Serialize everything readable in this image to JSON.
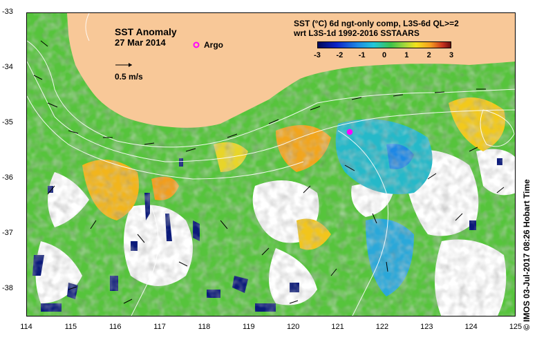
{
  "map": {
    "title": "SST Anomaly",
    "date": "27 Mar 2014",
    "argo_label": "Argo",
    "scale_label": "0.5 m/s",
    "product_line1": "SST (°C) 6d ngt-only comp, L3S-6d QL>=2",
    "product_line2": "wrt L3S-1d 1992-2016 SSTAARS",
    "credit": "©  IMOS 03-Jul-2017 08:26 Hobart Time",
    "colorbar_ticks": [
      "-3",
      "-2",
      "-1",
      "0",
      "1",
      "2",
      "3"
    ],
    "colorbar_range": [
      -3,
      3
    ],
    "lat_ticks": [
      "-33",
      "-34",
      "-35",
      "-36",
      "-37",
      "-38"
    ],
    "lon_ticks": [
      "114",
      "115",
      "116",
      "117",
      "118",
      "119",
      "120",
      "121",
      "122",
      "123",
      "124",
      "125"
    ],
    "lon_range": [
      114,
      125
    ],
    "lat_range": [
      -38.5,
      -33
    ],
    "argo_float": {
      "lon": 121.25,
      "lat": -35.15
    },
    "land_color": "#f8c898",
    "argo_color": "#ff00ff"
  }
}
